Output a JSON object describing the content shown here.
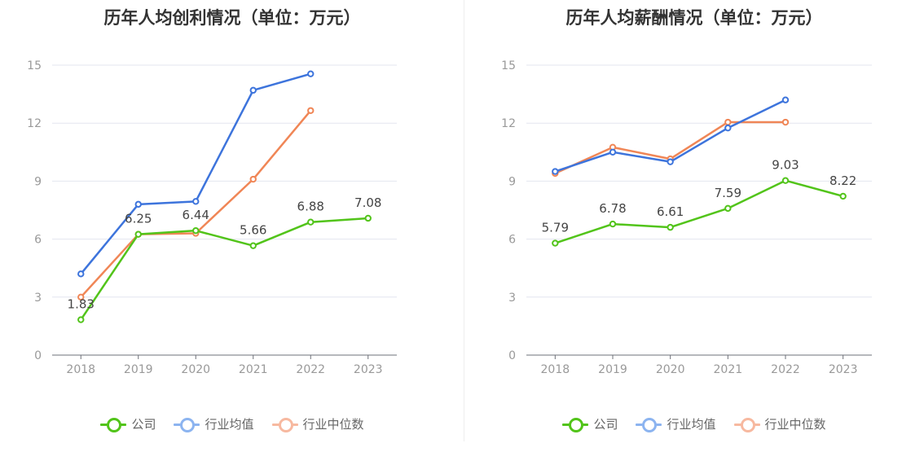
{
  "chart_data": [
    {
      "type": "line",
      "title": "历年人均创利情况（单位：万元）",
      "categories": [
        "2018",
        "2019",
        "2020",
        "2021",
        "2022",
        "2023"
      ],
      "ylim": [
        0,
        15
      ],
      "yticks": [
        0,
        3,
        6,
        9,
        12,
        15
      ],
      "grid": true,
      "legend": "bottom",
      "series": [
        {
          "name": "公司",
          "color": "#52c41a",
          "values": [
            1.83,
            6.25,
            6.44,
            5.66,
            6.88,
            7.08
          ],
          "labels": true
        },
        {
          "name": "行业均值",
          "color": "#3d74dc",
          "values": [
            4.2,
            7.8,
            7.95,
            13.7,
            14.55,
            null
          ],
          "labels": false
        },
        {
          "name": "行业中位数",
          "color": "#f08656",
          "values": [
            3.0,
            6.25,
            6.3,
            9.1,
            12.65,
            null
          ],
          "labels": false
        }
      ]
    },
    {
      "type": "line",
      "title": "历年人均薪酬情况（单位：万元）",
      "categories": [
        "2018",
        "2019",
        "2020",
        "2021",
        "2022",
        "2023"
      ],
      "ylim": [
        0,
        15
      ],
      "yticks": [
        0,
        3,
        6,
        9,
        12,
        15
      ],
      "grid": true,
      "legend": "bottom",
      "series": [
        {
          "name": "公司",
          "color": "#52c41a",
          "values": [
            5.79,
            6.78,
            6.61,
            7.59,
            9.03,
            8.22
          ],
          "labels": true
        },
        {
          "name": "行业均值",
          "color": "#3d74dc",
          "values": [
            9.5,
            10.5,
            10.0,
            11.75,
            13.2,
            null
          ],
          "labels": false
        },
        {
          "name": "行业中位数",
          "color": "#f08656",
          "values": [
            9.4,
            10.75,
            10.15,
            12.05,
            12.05,
            null
          ],
          "labels": false
        }
      ]
    }
  ],
  "legend_colors": {
    "公司": "#52c41a",
    "行业均值": "#8cb4f0",
    "行业中位数": "#f7b9a0"
  }
}
